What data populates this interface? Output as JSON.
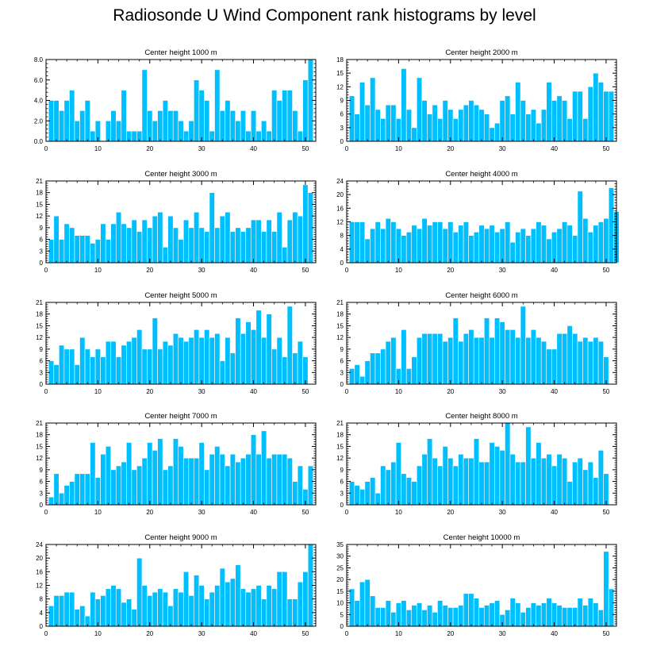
{
  "title": "Radiosonde U Wind Component rank histograms by level",
  "colors": {
    "bar": "#00bfff",
    "axis": "#000000",
    "background": "#ffffff"
  },
  "chart_data": [
    {
      "type": "bar",
      "title": "Center height 1000 m",
      "xlim": [
        0,
        52
      ],
      "xticks": [
        0,
        10,
        20,
        30,
        40,
        50
      ],
      "ylim": [
        0,
        8
      ],
      "yticks": [
        0,
        2,
        4,
        6,
        8
      ],
      "ytick_labels": [
        "0.0",
        "2.0",
        "4.0",
        "6.0",
        "8.0"
      ],
      "values": [
        4,
        4,
        3,
        4,
        5,
        2,
        3,
        4,
        1,
        2,
        0,
        2,
        3,
        2,
        5,
        1,
        1,
        1,
        7,
        3,
        2,
        3,
        4,
        3,
        3,
        2,
        1,
        2,
        6,
        5,
        4,
        1,
        7,
        3,
        4,
        3,
        2,
        3,
        1,
        3,
        1,
        2,
        1,
        5,
        4,
        5,
        5,
        3,
        1,
        6,
        8
      ]
    },
    {
      "type": "bar",
      "title": "Center height 2000 m",
      "xlim": [
        0,
        52
      ],
      "xticks": [
        0,
        10,
        20,
        30,
        40,
        50
      ],
      "ylim": [
        0,
        18
      ],
      "yticks": [
        0,
        3,
        6,
        9,
        12,
        15,
        18
      ],
      "ytick_labels": [
        "0",
        "3",
        "6",
        "9",
        "12",
        "15",
        "18"
      ],
      "values": [
        10,
        6,
        13,
        8,
        14,
        7,
        5,
        8,
        8,
        5,
        16,
        7,
        3,
        14,
        9,
        6,
        8,
        5,
        9,
        7,
        5,
        7,
        8,
        9,
        8,
        7,
        6,
        3,
        4,
        9,
        10,
        6,
        13,
        9,
        6,
        7,
        4,
        7,
        13,
        9,
        10,
        9,
        5,
        11,
        11,
        5,
        12,
        15,
        13,
        11,
        11
      ]
    },
    {
      "type": "bar",
      "title": "Center height 3000 m",
      "xlim": [
        0,
        52
      ],
      "xticks": [
        0,
        10,
        20,
        30,
        40,
        50
      ],
      "ylim": [
        0,
        21
      ],
      "yticks": [
        0,
        3,
        6,
        9,
        12,
        15,
        18,
        21
      ],
      "ytick_labels": [
        "0",
        "3",
        "6",
        "9",
        "12",
        "15",
        "18",
        "21"
      ],
      "values": [
        6,
        12,
        6,
        10,
        9,
        7,
        7,
        7,
        5,
        6,
        10,
        6,
        10,
        13,
        10,
        9,
        11,
        8,
        11,
        9,
        12,
        13,
        4,
        12,
        9,
        6,
        11,
        9,
        13,
        9,
        8,
        18,
        9,
        12,
        13,
        8,
        9,
        8,
        9,
        11,
        11,
        8,
        11,
        8,
        13,
        4,
        11,
        13,
        12,
        20,
        18
      ]
    },
    {
      "type": "bar",
      "title": "Center height 4000 m",
      "xlim": [
        0,
        52
      ],
      "xticks": [
        0,
        10,
        20,
        30,
        40,
        50
      ],
      "ylim": [
        0,
        24
      ],
      "yticks": [
        0,
        4,
        8,
        12,
        16,
        20,
        24
      ],
      "ytick_labels": [
        "0",
        "4",
        "8",
        "12",
        "16",
        "20",
        "24"
      ],
      "values": [
        12,
        12,
        12,
        7,
        10,
        12,
        10,
        13,
        12,
        10,
        8,
        9,
        11,
        10,
        13,
        11,
        12,
        12,
        10,
        12,
        9,
        11,
        12,
        8,
        9,
        11,
        10,
        11,
        9,
        10,
        12,
        6,
        9,
        10,
        8,
        10,
        12,
        11,
        7,
        9,
        10,
        12,
        11,
        8,
        21,
        13,
        9,
        11,
        12,
        13,
        22,
        15
      ]
    },
    {
      "type": "bar",
      "title": "Center height 5000 m",
      "xlim": [
        0,
        52
      ],
      "xticks": [
        0,
        10,
        20,
        30,
        40,
        50
      ],
      "ylim": [
        0,
        21
      ],
      "yticks": [
        0,
        3,
        6,
        9,
        12,
        15,
        18,
        21
      ],
      "ytick_labels": [
        "0",
        "3",
        "6",
        "9",
        "12",
        "15",
        "18",
        "21"
      ],
      "values": [
        6,
        5,
        10,
        9,
        9,
        5,
        12,
        9,
        7,
        9,
        7,
        11,
        11,
        7,
        10,
        11,
        12,
        14,
        9,
        9,
        17,
        9,
        11,
        10,
        13,
        12,
        11,
        12,
        14,
        12,
        14,
        12,
        13,
        6,
        12,
        8,
        17,
        13,
        16,
        14,
        19,
        12,
        18,
        9,
        12,
        7,
        20,
        8,
        11,
        7
      ]
    },
    {
      "type": "bar",
      "title": "Center height 6000 m",
      "xlim": [
        0,
        52
      ],
      "xticks": [
        0,
        10,
        20,
        30,
        40,
        50
      ],
      "ylim": [
        0,
        21
      ],
      "yticks": [
        0,
        3,
        6,
        9,
        12,
        15,
        18,
        21
      ],
      "ytick_labels": [
        "0",
        "3",
        "6",
        "9",
        "12",
        "15",
        "18",
        "21"
      ],
      "values": [
        4,
        5,
        2,
        6,
        8,
        8,
        9,
        11,
        12,
        4,
        14,
        4,
        7,
        12,
        13,
        13,
        13,
        13,
        11,
        12,
        17,
        11,
        13,
        14,
        12,
        12,
        17,
        12,
        17,
        16,
        14,
        14,
        12,
        20,
        12,
        14,
        12,
        11,
        9,
        9,
        13,
        13,
        15,
        13,
        11,
        12,
        11,
        12,
        11,
        7
      ]
    },
    {
      "type": "bar",
      "title": "Center height 7000 m",
      "xlim": [
        0,
        52
      ],
      "xticks": [
        0,
        10,
        20,
        30,
        40,
        50
      ],
      "ylim": [
        0,
        21
      ],
      "yticks": [
        0,
        3,
        6,
        9,
        12,
        15,
        18,
        21
      ],
      "ytick_labels": [
        "0",
        "3",
        "6",
        "9",
        "12",
        "15",
        "18",
        "21"
      ],
      "values": [
        2,
        8,
        3,
        5,
        6,
        8,
        8,
        8,
        16,
        7,
        13,
        15,
        9,
        10,
        11,
        16,
        9,
        10,
        12,
        16,
        14,
        17,
        9,
        10,
        17,
        15,
        12,
        12,
        12,
        16,
        9,
        13,
        15,
        13,
        10,
        13,
        11,
        12,
        13,
        18,
        13,
        19,
        12,
        13,
        13,
        13,
        12,
        6,
        10,
        4,
        10
      ]
    },
    {
      "type": "bar",
      "title": "Center height 8000 m",
      "xlim": [
        0,
        52
      ],
      "xticks": [
        0,
        10,
        20,
        30,
        40,
        50
      ],
      "ylim": [
        0,
        21
      ],
      "yticks": [
        0,
        3,
        6,
        9,
        12,
        15,
        18,
        21
      ],
      "ytick_labels": [
        "0",
        "3",
        "6",
        "9",
        "12",
        "15",
        "18",
        "21"
      ],
      "values": [
        6,
        5,
        4,
        6,
        7,
        3,
        10,
        9,
        11,
        16,
        8,
        7,
        6,
        10,
        13,
        17,
        12,
        10,
        15,
        12,
        10,
        13,
        12,
        12,
        17,
        11,
        11,
        16,
        15,
        14,
        21,
        13,
        11,
        11,
        20,
        12,
        16,
        12,
        13,
        10,
        13,
        12,
        6,
        11,
        12,
        9,
        11,
        7,
        14,
        8
      ]
    },
    {
      "type": "bar",
      "title": "Center height 9000 m",
      "xlim": [
        0,
        52
      ],
      "xticks": [
        0,
        10,
        20,
        30,
        40,
        50
      ],
      "ylim": [
        0,
        24
      ],
      "yticks": [
        0,
        4,
        8,
        12,
        16,
        20,
        24
      ],
      "ytick_labels": [
        "0",
        "4",
        "8",
        "12",
        "16",
        "20",
        "24"
      ],
      "values": [
        6,
        9,
        9,
        10,
        10,
        5,
        6,
        3,
        10,
        8,
        9,
        11,
        12,
        11,
        7,
        8,
        5,
        20,
        12,
        9,
        10,
        11,
        10,
        6,
        11,
        10,
        16,
        9,
        15,
        12,
        8,
        10,
        12,
        17,
        13,
        14,
        18,
        11,
        10,
        11,
        12,
        8,
        12,
        11,
        16,
        16,
        8,
        8,
        13,
        16,
        24
      ]
    },
    {
      "type": "bar",
      "title": "Center height 10000 m",
      "xlim": [
        0,
        52
      ],
      "xticks": [
        0,
        10,
        20,
        30,
        40,
        50
      ],
      "ylim": [
        0,
        35
      ],
      "yticks": [
        0,
        5,
        10,
        15,
        20,
        25,
        30,
        35
      ],
      "ytick_labels": [
        "0",
        "5",
        "10",
        "15",
        "20",
        "25",
        "30",
        "35"
      ],
      "values": [
        16,
        11,
        19,
        20,
        13,
        8,
        8,
        11,
        6,
        10,
        11,
        7,
        9,
        10,
        7,
        9,
        6,
        11,
        9,
        8,
        8,
        9,
        14,
        14,
        12,
        8,
        9,
        10,
        11,
        5,
        7,
        12,
        10,
        6,
        8,
        10,
        9,
        10,
        12,
        10,
        9,
        8,
        8,
        8,
        12,
        9,
        12,
        10,
        7,
        32,
        16
      ]
    }
  ]
}
